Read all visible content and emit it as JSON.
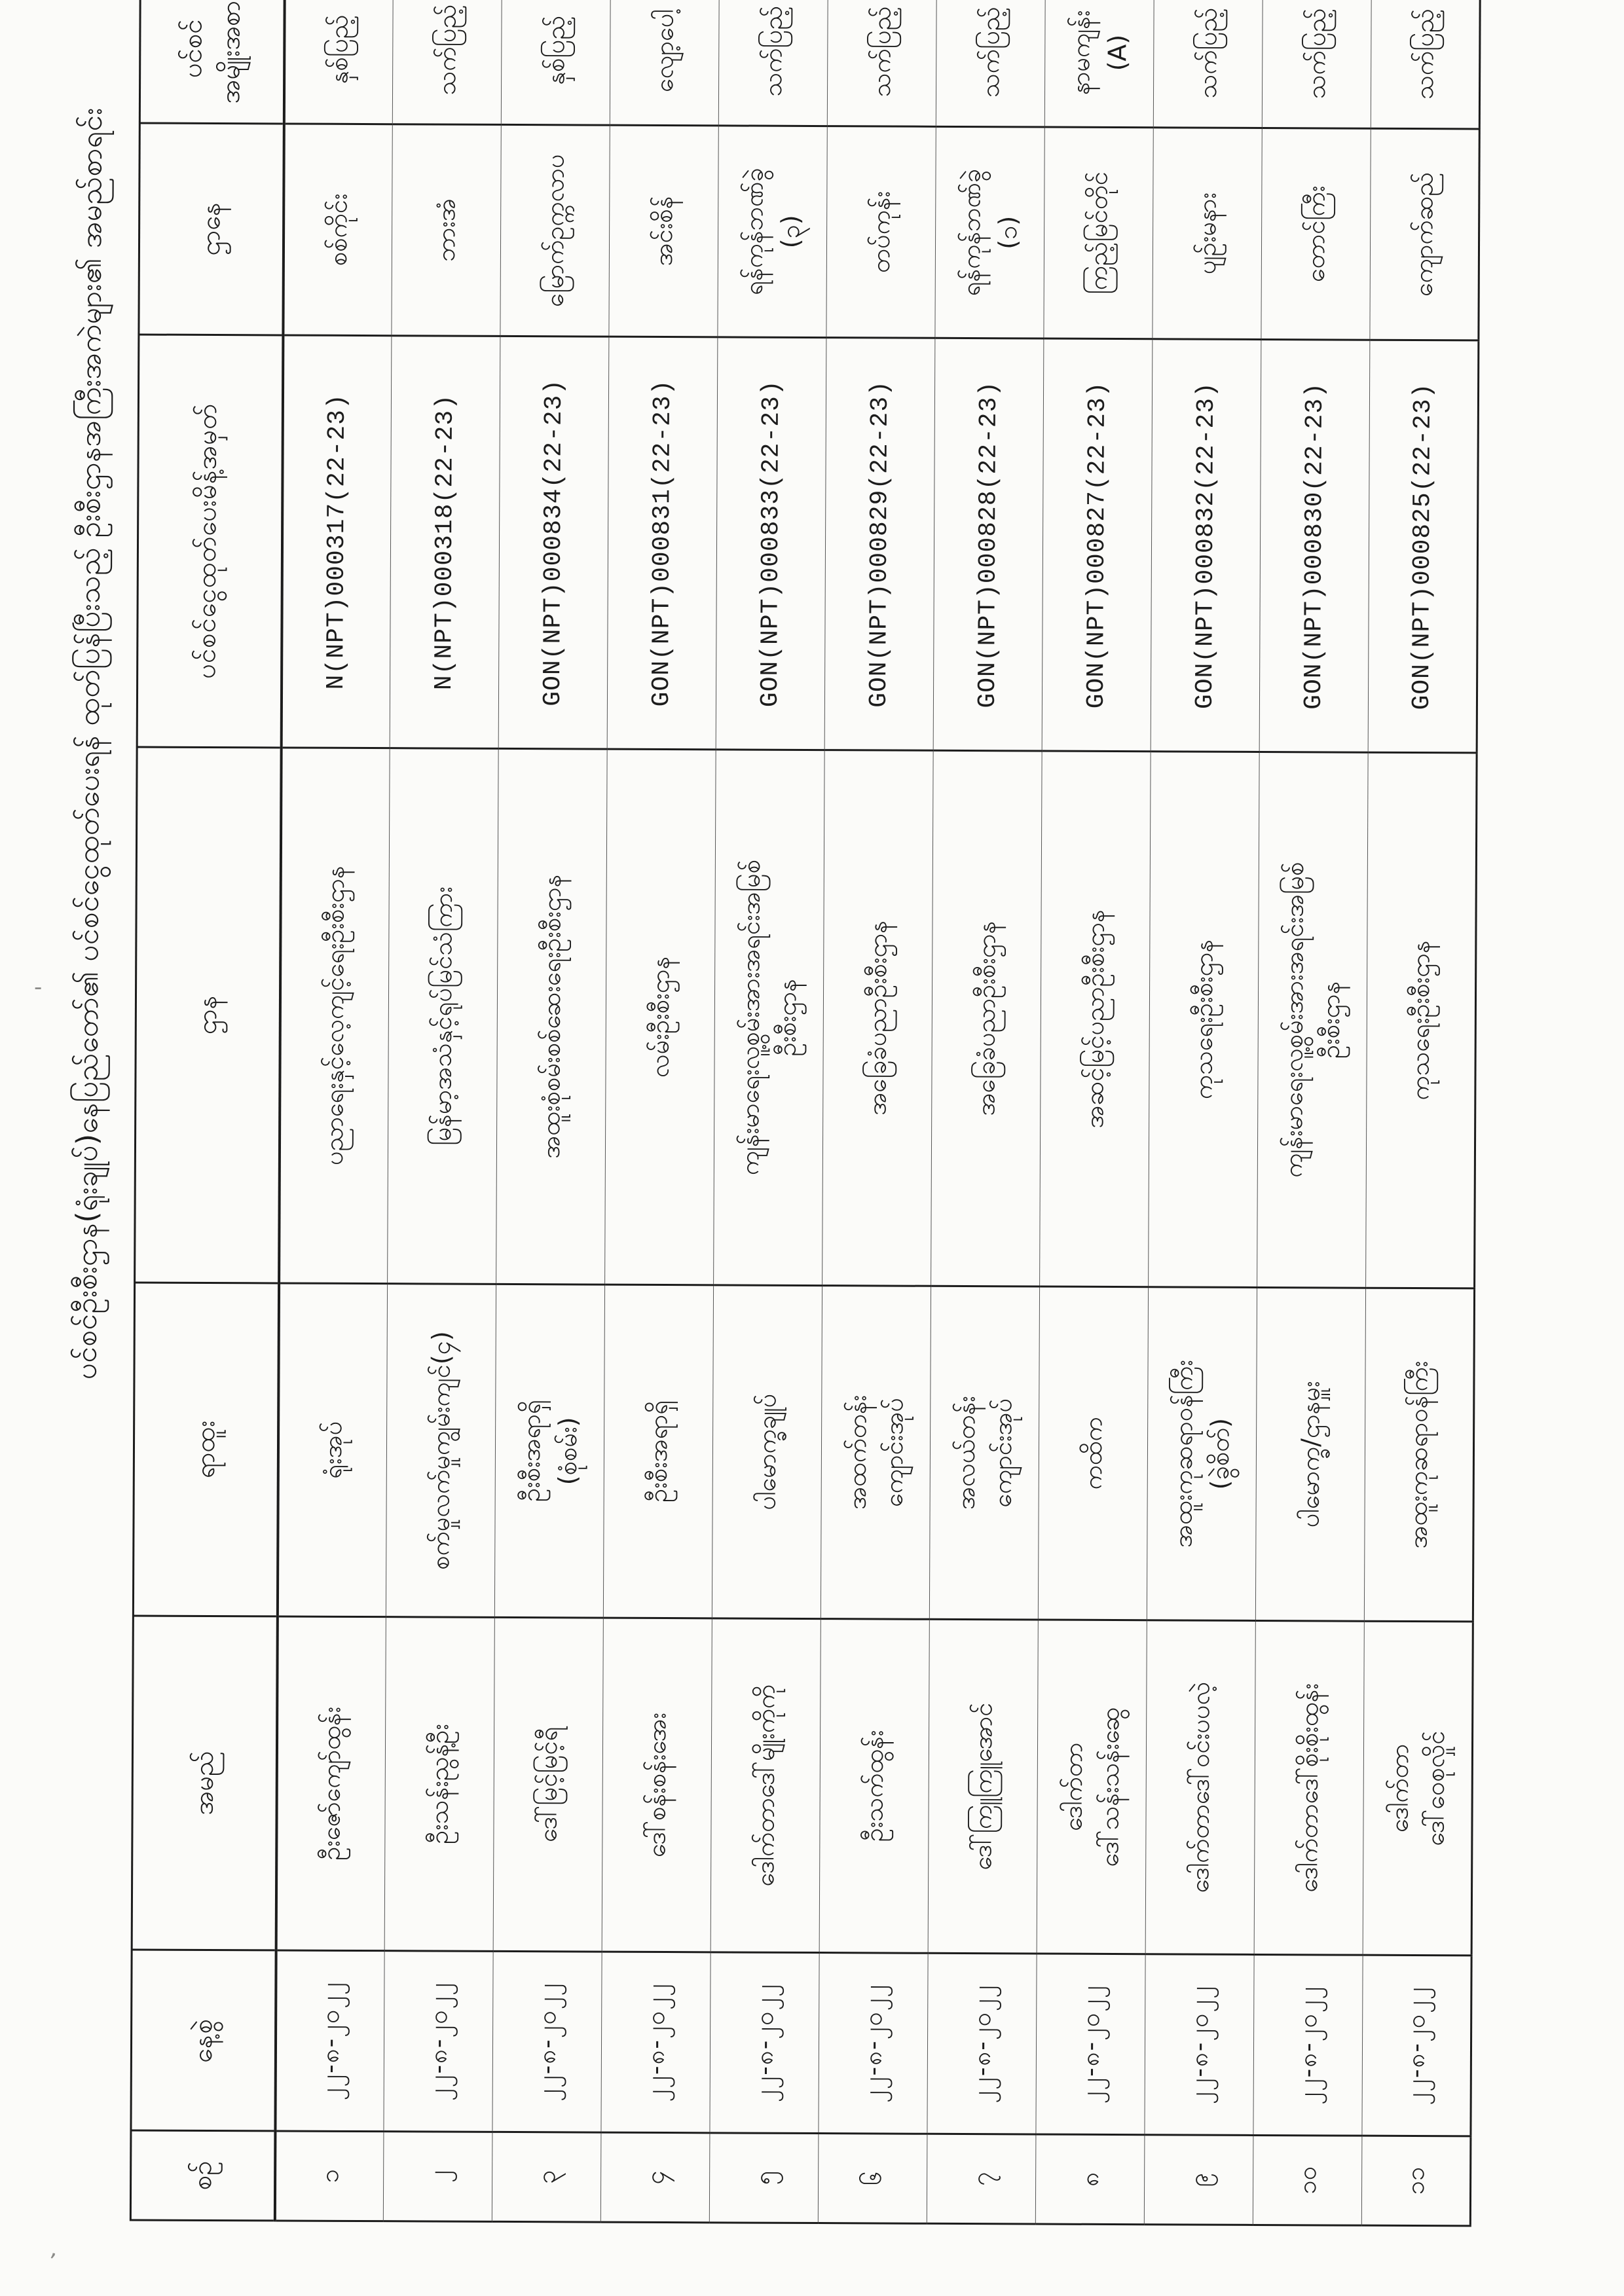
{
  "colors": {
    "ink": "#1c1c1c",
    "paper": "#fbfbf9",
    "grid": "#3e3e3e"
  },
  "title": "ပင်စင်ဦးစီးဌာန(ရုံးချုပ်)နေပြည်တော်၏ ပင်စင်ငွေထုတ်ပေးရန် ထုတ်ပြန်ပြီးသည့် ဦးစီးဌာနအကြီးအကဲများ၏ အမည်စာရင်း",
  "artifacts": {
    "dot": "-",
    "tick": ","
  },
  "table": {
    "headers": {
      "no": "စဉ်",
      "date": "နေ့စွဲ",
      "name": "အမည်",
      "position": "ရာထူး",
      "department": "ဌာန",
      "permit_no": "ပင်စင်ငွေထုတ်ပေးမိန့်အမှတ်",
      "residence": "ဌာနေ",
      "pension_type": [
        "ပင်စင်",
        "အမျိုးအစား"
      ],
      "remark": [
        "မှတ်",
        "ချက်"
      ]
    },
    "rows": [
      {
        "no": "၁",
        "date": "၂၂-၈-၂၀၂၂",
        "name": "ဦးဇော်ကျော်ထွန်း",
        "position": "ရုံးအုပ်",
        "department": "ပညာရေးနှင့်လေ့ကျင့်ရေးဦးစီးဌာန",
        "permit_no": "N(NPT)000317(22-23)",
        "residence": "စစ်ကိုင်း",
        "pension_type": "နှစ်ပြည့်",
        "remark": ""
      },
      {
        "no": "၂",
        "date": "၂၂-၈-၂၀၂၂",
        "name": "ဦးသန်းညွန့်ဦး",
        "position": "စက်မှုလက်မှုကျွမ်းကျင်(၄)",
        "department": "မြန်မာ့အသံနှင့်ရုပ်မြင်သံကြား",
        "permit_no": "N(NPT)000318(22-23)",
        "residence": "ဘားအံ",
        "pension_type": "သက်ပြည့်",
        "remark": ""
      },
      {
        "no": "၃",
        "date": "၂၂-၈-၂၀၂၂",
        "name": "ဒေါ်မြင့်မြင့်ရီ",
        "position": [
          "ဦးစီးအရာရှိ",
          "(စုံစမ်း)"
        ],
        "department": "အထူးစုံစမ်းစစ်ဆေးရေးဦးစီးဌာန",
        "permit_no": "GON(NPT)000834(22-23)",
        "residence": "မြောက်ဥက္ကလာပ",
        "pension_type": "နှစ်ပြည့်",
        "remark": ""
      },
      {
        "no": "၄",
        "date": "၂၂-၈-၂၀၂၂",
        "name": "ဒေါ်စန်းစန်းအေး",
        "position": "ဦးစီးအရာရှိ",
        "department": "လမ်းဦးစီးဌာန",
        "permit_no": "GON(NPT)000831(22-23)",
        "residence": "အင်းစိန်",
        "pension_type": "လျော့ပေါ့",
        "remark": ""
      },
      {
        "no": "၅",
        "date": "၂၂-၈-၂၀၂၂",
        "name": "ဒေါက်တာဒေါ်မျိုးကိုကို",
        "position": "ပါမောက္ခချုပ်",
        "department": [
          "ကျန်းမာရေးလူ့စွမ်းအားအရင်းအမြစ်",
          "ဦးစီးဌာန"
        ],
        "permit_no": "GON(NPT)000833(22-23)",
        "residence": [
          "ရန်ကုန်ဘဏ်ခွဲ",
          "(၃)"
        ],
        "pension_type": "သက်ပြည့်",
        "remark": ""
      },
      {
        "no": "၆",
        "date": "၂၂-၈-၂၀၂၂",
        "name": "ဦးသက်ထွန်း",
        "position": [
          "အထက်တန်း",
          "ကျောင်းအုပ်"
        ],
        "department": "အခြေခံပညာဦးစီးဌာန",
        "permit_no": "GON(NPT)000829(22-23)",
        "residence": "တပ်ကုန်း",
        "pension_type": "သက်ပြည့်",
        "remark": ""
      },
      {
        "no": "၇",
        "date": "၂၂-၈-၂၀၂၂",
        "name": "ဒေါ်ကြူကြူအောင်",
        "position": [
          "အလယ်တန်း",
          "ကျောင်းအုပ်"
        ],
        "department": "အခြေခံပညာဦးစီးဌာန",
        "permit_no": "GON(NPT)000828(22-23)",
        "residence": [
          "ရန်ကုန်ဘဏ်ခွဲ",
          "(၁)"
        ],
        "pension_type": "သက်ပြည့်",
        "remark": ""
      },
      {
        "no": "၈",
        "date": "၂၂-၈-၂၀၂၂",
        "name": [
          "ဒေါက်တာ",
          "ဒေါ်သန်းသန်းဆွေ"
        ],
        "position": "ကထိက",
        "department": "အဆင့်မြင့်ပညာဦးစီးဌာန",
        "permit_no": "GON(NPT)000827(22-23)",
        "residence": "ကြည့်မြင်တိုင်",
        "pension_type": [
          "နာမကျန်း",
          "(A)"
        ],
        "remark": ""
      },
      {
        "no": "၉",
        "date": "၂၂-၈-၂၀၂၂",
        "name": "ဒေါက်တာဒေါ်ဝင်းပပလဲ့",
        "position": [
          "အထူးကုဆရာဝန်ကြီး",
          "(ခွဲစိတ်)"
        ],
        "department": "ကုသရေးဦးစီးဌာန",
        "permit_no": "GON(NPT)000832(22-23)",
        "residence": "ပျဉ်းမနား",
        "pension_type": "သက်ပြည့်",
        "remark": ""
      },
      {
        "no": "၁၀",
        "date": "၂၂-၈-၂၀၂၂",
        "name": "ဒေါက်တာဒေါ်စိုးစိုးထွန်း",
        "position": "ပါမောက္ခ/ဌာနမှူး",
        "department": [
          "ကျန်းမာရေးလူ့စွမ်းအားအရင်းအမြစ်",
          "ဦးစီးဌာန"
        ],
        "permit_no": "GON(NPT)000830(22-23)",
        "residence": "တောင်ကြီး",
        "pension_type": "သက်ပြည့်",
        "remark": ""
      },
      {
        "no": "၁၁",
        "date": "၂၂-၈-၂၀၂၂",
        "name": [
          "ဒေါက်တာ",
          "ဒေါ်ဝေစုလှိုင်"
        ],
        "position": "အထူးကုဆရာဝန်ကြီး",
        "department": "ကုသရေးဦးစီးဌာန",
        "permit_no": "GON(NPT)000825(22-23)",
        "residence": "ကျောက်ဆည်",
        "pension_type": "သက်ပြည့်",
        "remark": ""
      }
    ]
  }
}
